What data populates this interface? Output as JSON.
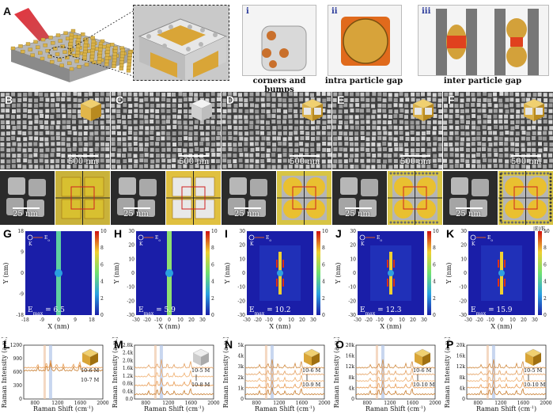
{
  "panel_a": {
    "label": "A",
    "insets": [
      {
        "numeral": "i",
        "caption": "corners and bumps"
      },
      {
        "numeral": "ii",
        "caption": "intra particle gap"
      },
      {
        "numeral": "iii",
        "caption": "inter particle gap"
      }
    ]
  },
  "sem_row": {
    "panels": [
      {
        "label": "B",
        "scale_top": "500 nm",
        "scale_bottom": "25 nm"
      },
      {
        "label": "C",
        "scale_top": "500 nm",
        "scale_bottom": "25 nm"
      },
      {
        "label": "D",
        "scale_top": "500 nm",
        "scale_bottom": "25 nm"
      },
      {
        "label": "E",
        "scale_top": "500 nm",
        "scale_bottom": "25 nm"
      },
      {
        "label": "F",
        "scale_top": "500 nm",
        "scale_bottom": "25 nm"
      }
    ]
  },
  "field_maps": {
    "panels": [
      {
        "label": "G",
        "emax": "E",
        "emax_sub": "max",
        "emax_val": " = 6.5",
        "ticks": [
          "-18",
          "-9",
          "0",
          "9",
          "18"
        ],
        "colorbar_ticks": [
          "10",
          "8",
          "6",
          "4",
          "2",
          "0"
        ]
      },
      {
        "label": "H",
        "emax": "E",
        "emax_sub": "max",
        "emax_val": " = 5.9",
        "ticks": [
          "-30",
          "-20",
          "-10",
          "0",
          "10",
          "20",
          "30"
        ],
        "colorbar_ticks": [
          "10",
          "8",
          "6",
          "4",
          "2",
          "0"
        ]
      },
      {
        "label": "I",
        "emax": "E",
        "emax_sub": "max",
        "emax_val": " = 10.2",
        "ticks": [
          "-30",
          "-20",
          "-10",
          "0",
          "10",
          "20",
          "30"
        ],
        "colorbar_ticks": [
          "10",
          "8",
          "6",
          "4",
          "2",
          "0"
        ]
      },
      {
        "label": "J",
        "emax": "E",
        "emax_sub": "max",
        "emax_val": " = 12.3",
        "ticks": [
          "-30",
          "-20",
          "-10",
          "0",
          "10",
          "20",
          "30"
        ],
        "colorbar_ticks": [
          "10",
          "8",
          "6",
          "4",
          "2",
          "0"
        ]
      },
      {
        "label": "K",
        "emax": "E",
        "emax_sub": "max",
        "emax_val": " = 15.9",
        "ticks": [
          "-30",
          "-20",
          "-10",
          "0",
          "10",
          "20",
          "30"
        ],
        "colorbar_ticks": [
          "10",
          "8",
          "6",
          "4",
          "2",
          "0"
        ]
      }
    ],
    "xlabel": "X (nm)",
    "ylabel": "Y (nm)",
    "legend_e0": "E",
    "legend_e0_sub": "0",
    "legend_k": "K",
    "colorbar_title": "|E|/E",
    "colorbar_title_sub": "0"
  },
  "raman": {
    "xlabel": "Raman Shift (cm",
    "xlabel_sup": "-1",
    "xlabel_end": ")",
    "ylabel": "Raman Intensity (a.u.)",
    "xticks": [
      "800",
      "1200",
      "1600",
      "2000"
    ],
    "panels": [
      {
        "label": "L",
        "yticks": [
          "0",
          "300",
          "600",
          "900",
          "1200"
        ],
        "conc": [
          "10-6 M",
          "10-7 M"
        ],
        "arrow": false
      },
      {
        "label": "M",
        "yticks": [
          "0.0",
          "0.4k",
          "0.8k",
          "1.2k",
          "1.6k",
          "2.0k",
          "2.4k",
          "2.8k"
        ],
        "conc": [
          "10-5 M",
          "10-8 M"
        ],
        "arrow": true
      },
      {
        "label": "N",
        "yticks": [
          "0",
          "1k",
          "2k",
          "3k",
          "4k",
          "5k"
        ],
        "conc": [
          "10-6 M",
          "10-9 M"
        ],
        "arrow": true
      },
      {
        "label": "O",
        "yticks": [
          "0",
          "4k",
          "8k",
          "12k",
          "16k",
          "20k"
        ],
        "conc": [
          "10-6 M",
          "10-10 M"
        ],
        "arrow": true
      },
      {
        "label": "P",
        "yticks": [
          "0",
          "4k",
          "8k",
          "12k",
          "16k",
          "20k"
        ],
        "conc": [
          "10-5 M",
          "10-10 M"
        ],
        "arrow": true
      }
    ]
  }
}
